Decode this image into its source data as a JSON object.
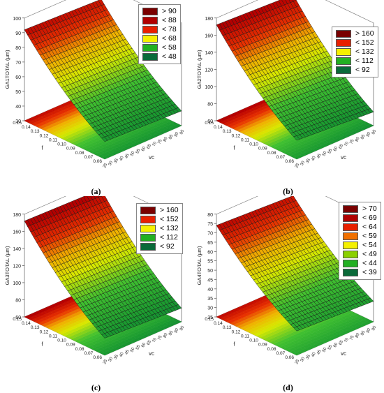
{
  "chart_data": [
    {
      "type": "surface",
      "caption": "(a)",
      "zlabel": "GA1TOTAL (µm)",
      "xlabel": "f",
      "ylabel": "vc",
      "z_ticks": [
        "100",
        "90",
        "80",
        "70",
        "60",
        "50",
        "40",
        "30"
      ],
      "f_ticks": [
        "0.15",
        "0.14",
        "0.13",
        "0.12",
        "0.11",
        "0.10",
        "0.09",
        "0.08",
        "0.07",
        "0.06"
      ],
      "vc_ticks": [
        "25",
        "30",
        "35",
        "40",
        "45",
        "50",
        "55",
        "60",
        "65",
        "70",
        "75",
        "80",
        "85",
        "90",
        "95"
      ],
      "zlim": [
        30,
        100
      ],
      "flim": [
        0.06,
        0.15
      ],
      "vclim": [
        25,
        95
      ],
      "surface": {
        "rows_vc": [
          25,
          95
        ],
        "z_at_f_min_vc_min": 42,
        "z_at_f_min_vc_max": 40,
        "z_at_f_max_vc_min": 92,
        "z_at_f_max_vc_max": 90
      },
      "legend": [
        {
          "label": "> 90",
          "color": "#7a0000"
        },
        {
          "label": "< 88",
          "color": "#b00000"
        },
        {
          "label": "< 78",
          "color": "#e82000"
        },
        {
          "label": "< 68",
          "color": "#f5f000"
        },
        {
          "label": "< 58",
          "color": "#22b022"
        },
        {
          "label": "< 48",
          "color": "#0a6a3a"
        }
      ]
    },
    {
      "type": "surface",
      "caption": "(b)",
      "zlabel": "GA2TOTAL (µm)",
      "xlabel": "f",
      "ylabel": "vc",
      "z_ticks": [
        "180",
        "160",
        "140",
        "120",
        "100",
        "80",
        "60"
      ],
      "f_ticks": [
        "0.15",
        "0.14",
        "0.13",
        "0.12",
        "0.11",
        "0.10",
        "0.09",
        "0.08",
        "0.07",
        "0.06"
      ],
      "vc_ticks": [
        "25",
        "30",
        "35",
        "40",
        "45",
        "50",
        "55",
        "60",
        "65",
        "70",
        "75",
        "80",
        "85",
        "90",
        "95"
      ],
      "zlim": [
        60,
        180
      ],
      "flim": [
        0.06,
        0.15
      ],
      "vclim": [
        25,
        95
      ],
      "surface": {
        "z_at_f_min_vc_min": 82,
        "z_at_f_min_vc_max": 76,
        "z_at_f_max_vc_min": 172,
        "z_at_f_max_vc_max": 168
      },
      "legend": [
        {
          "label": "> 160",
          "color": "#7a0000"
        },
        {
          "label": "< 152",
          "color": "#e82000"
        },
        {
          "label": "< 132",
          "color": "#f5f000"
        },
        {
          "label": "< 112",
          "color": "#22b022"
        },
        {
          "label": "< 92",
          "color": "#0a6a3a"
        }
      ]
    },
    {
      "type": "surface",
      "caption": "(c)",
      "zlabel": "GA3TOTAL (µm)",
      "xlabel": "f",
      "ylabel": "vc",
      "z_ticks": [
        "180",
        "160",
        "140",
        "120",
        "100",
        "80",
        "60"
      ],
      "f_ticks": [
        "0.15",
        "0.14",
        "0.13",
        "0.12",
        "0.11",
        "0.10",
        "0.09",
        "0.08",
        "0.07",
        "0.06"
      ],
      "vc_ticks": [
        "25",
        "30",
        "35",
        "40",
        "45",
        "50",
        "55",
        "60",
        "65",
        "70",
        "75",
        "80",
        "85",
        "90",
        "95"
      ],
      "zlim": [
        60,
        180
      ],
      "flim": [
        0.06,
        0.15
      ],
      "vclim": [
        25,
        95
      ],
      "surface": {
        "z_at_f_min_vc_min": 80,
        "z_at_f_min_vc_max": 76,
        "z_at_f_max_vc_min": 172,
        "z_at_f_max_vc_max": 170
      },
      "legend": [
        {
          "label": "> 160",
          "color": "#7a0000"
        },
        {
          "label": "< 152",
          "color": "#e82000"
        },
        {
          "label": "< 132",
          "color": "#f5f000"
        },
        {
          "label": "< 112",
          "color": "#22b022"
        },
        {
          "label": "< 92",
          "color": "#0a6a3a"
        }
      ]
    },
    {
      "type": "surface",
      "caption": "(d)",
      "zlabel": "GA4TOTAL (µm)",
      "xlabel": "f",
      "ylabel": "vc",
      "z_ticks": [
        "80",
        "75",
        "70",
        "65",
        "60",
        "55",
        "50",
        "45",
        "40",
        "35",
        "30",
        "25"
      ],
      "f_ticks": [
        "0.15",
        "0.14",
        "0.13",
        "0.12",
        "0.11",
        "0.10",
        "0.09",
        "0.08",
        "0.07",
        "0.06"
      ],
      "vc_ticks": [
        "25",
        "30",
        "35",
        "40",
        "45",
        "50",
        "55",
        "60",
        "65",
        "70",
        "75",
        "80",
        "85",
        "90",
        "95"
      ],
      "zlim": [
        25,
        80
      ],
      "flim": [
        0.06,
        0.15
      ],
      "vclim": [
        25,
        95
      ],
      "surface": {
        "z_at_f_min_vc_min": 38,
        "z_at_f_min_vc_max": 36,
        "z_at_f_max_vc_min": 74,
        "z_at_f_max_vc_max": 72
      },
      "legend": [
        {
          "label": "> 70",
          "color": "#7a0000"
        },
        {
          "label": "< 69",
          "color": "#b00000"
        },
        {
          "label": "< 64",
          "color": "#e82000"
        },
        {
          "label": "< 59",
          "color": "#f07000"
        },
        {
          "label": "< 54",
          "color": "#f5f000"
        },
        {
          "label": "< 49",
          "color": "#8ad000"
        },
        {
          "label": "< 44",
          "color": "#22b022"
        },
        {
          "label": "< 39",
          "color": "#0a6a3a"
        }
      ]
    }
  ]
}
